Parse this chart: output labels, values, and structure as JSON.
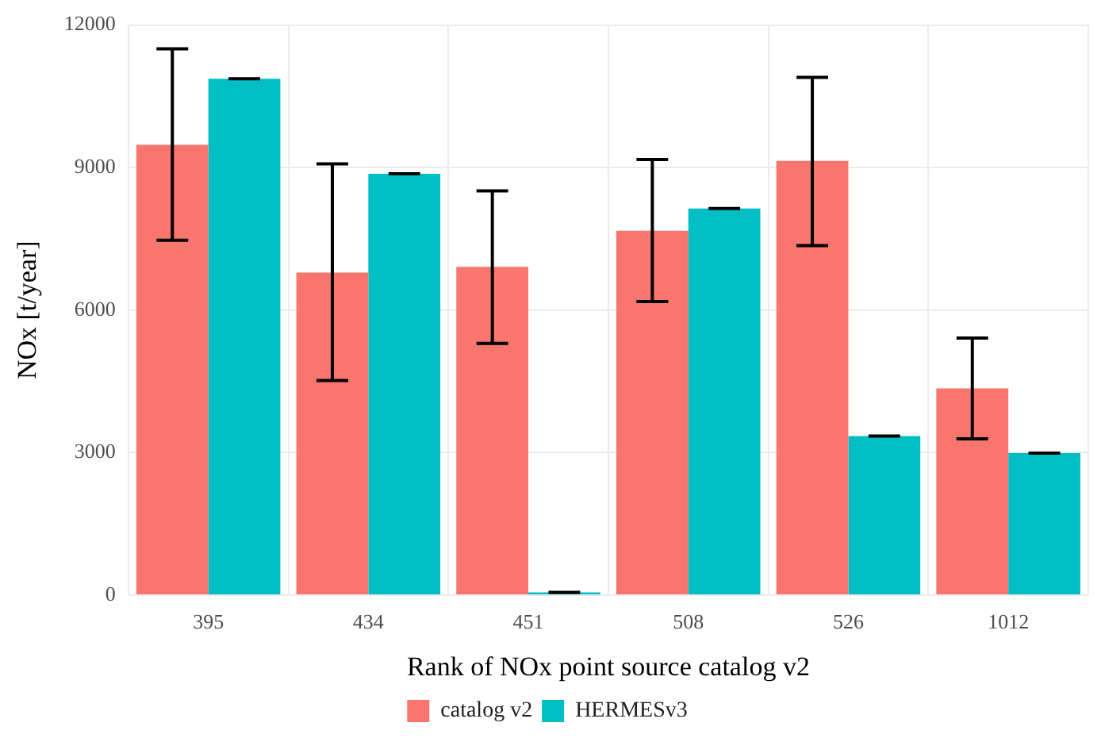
{
  "chart_data": {
    "type": "bar",
    "xlabel": "Rank of NOx point source catalog v2",
    "ylabel": "NOx [t/year]",
    "categories": [
      "395",
      "434",
      "451",
      "508",
      "526",
      "1012"
    ],
    "series": [
      {
        "name": "catalog v2",
        "color": "#f8766d",
        "values": [
          9480,
          6790,
          6910,
          7670,
          9140,
          4350
        ],
        "errors": [
          [
            7470,
            11500
          ],
          [
            4520,
            9080
          ],
          [
            5300,
            8510
          ],
          [
            6180,
            9170
          ],
          [
            7360,
            10900
          ],
          [
            3290,
            5410
          ]
        ]
      },
      {
        "name": "HERMESv3",
        "color": "#00bfc4",
        "values": [
          10870,
          8870,
          60,
          8140,
          3350,
          2990
        ],
        "errors": [
          [
            10870,
            10870
          ],
          [
            8870,
            8870
          ],
          [
            60,
            60
          ],
          [
            8140,
            8140
          ],
          [
            3350,
            3350
          ],
          [
            2990,
            2990
          ]
        ]
      }
    ],
    "ylim": [
      0,
      12000
    ],
    "yticks": [
      0,
      3000,
      6000,
      9000,
      12000
    ],
    "grid": true,
    "legend": "bottom"
  }
}
